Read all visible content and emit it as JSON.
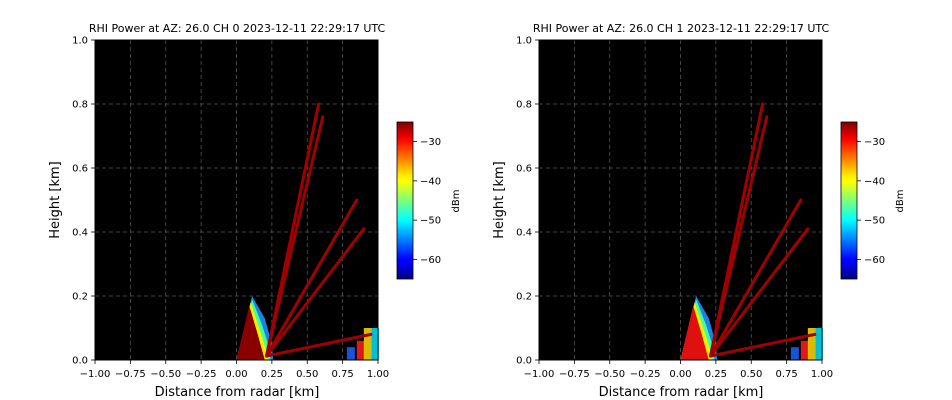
{
  "chart_data": [
    {
      "type": "heatmap",
      "title": "RHI Power at AZ: 26.0 CH 0 2023-12-11 22:29:17 UTC",
      "xlabel": "Distance from radar [km]",
      "ylabel": "Height [km]",
      "xlim": [
        -1.0,
        1.0
      ],
      "ylim": [
        0.0,
        1.0
      ],
      "xticks": [
        "−1.00",
        "−0.75",
        "−0.50",
        "−0.25",
        "0.00",
        "0.25",
        "0.50",
        "0.75",
        "1.00"
      ],
      "yticks": [
        "0.0",
        "0.2",
        "0.4",
        "0.6",
        "0.8",
        "1.0"
      ],
      "grid": true,
      "colorbar": {
        "label": "dBm",
        "range": [
          -65,
          -25
        ],
        "ticks": [
          "−30",
          "−40",
          "−50",
          "−60"
        ],
        "colormap": "jet"
      },
      "rays": [
        {
          "end_x": 0.58,
          "end_y": 0.8
        },
        {
          "end_x": 0.61,
          "end_y": 0.76
        },
        {
          "end_x": 0.85,
          "end_y": 0.5
        },
        {
          "end_x": 0.9,
          "end_y": 0.41
        },
        {
          "end_x": 0.95,
          "end_y": 0.08
        }
      ]
    },
    {
      "type": "heatmap",
      "title": "RHI Power at AZ: 26.0 CH 1 2023-12-11 22:29:17 UTC",
      "xlabel": "Distance from radar [km]",
      "ylabel": "Height [km]",
      "xlim": [
        -1.0,
        1.0
      ],
      "ylim": [
        0.0,
        1.0
      ],
      "xticks": [
        "−1.00",
        "−0.75",
        "−0.50",
        "−0.25",
        "0.00",
        "0.25",
        "0.50",
        "0.75",
        "1.00"
      ],
      "yticks": [
        "0.0",
        "0.2",
        "0.4",
        "0.6",
        "0.8",
        "1.0"
      ],
      "grid": true,
      "colorbar": {
        "label": "dBm",
        "range": [
          -65,
          -25
        ],
        "ticks": [
          "−30",
          "−40",
          "−50",
          "−60"
        ],
        "colormap": "jet"
      },
      "rays": [
        {
          "end_x": 0.58,
          "end_y": 0.8
        },
        {
          "end_x": 0.61,
          "end_y": 0.76
        },
        {
          "end_x": 0.85,
          "end_y": 0.5
        },
        {
          "end_x": 0.9,
          "end_y": 0.41
        },
        {
          "end_x": 0.95,
          "end_y": 0.08
        }
      ]
    }
  ]
}
